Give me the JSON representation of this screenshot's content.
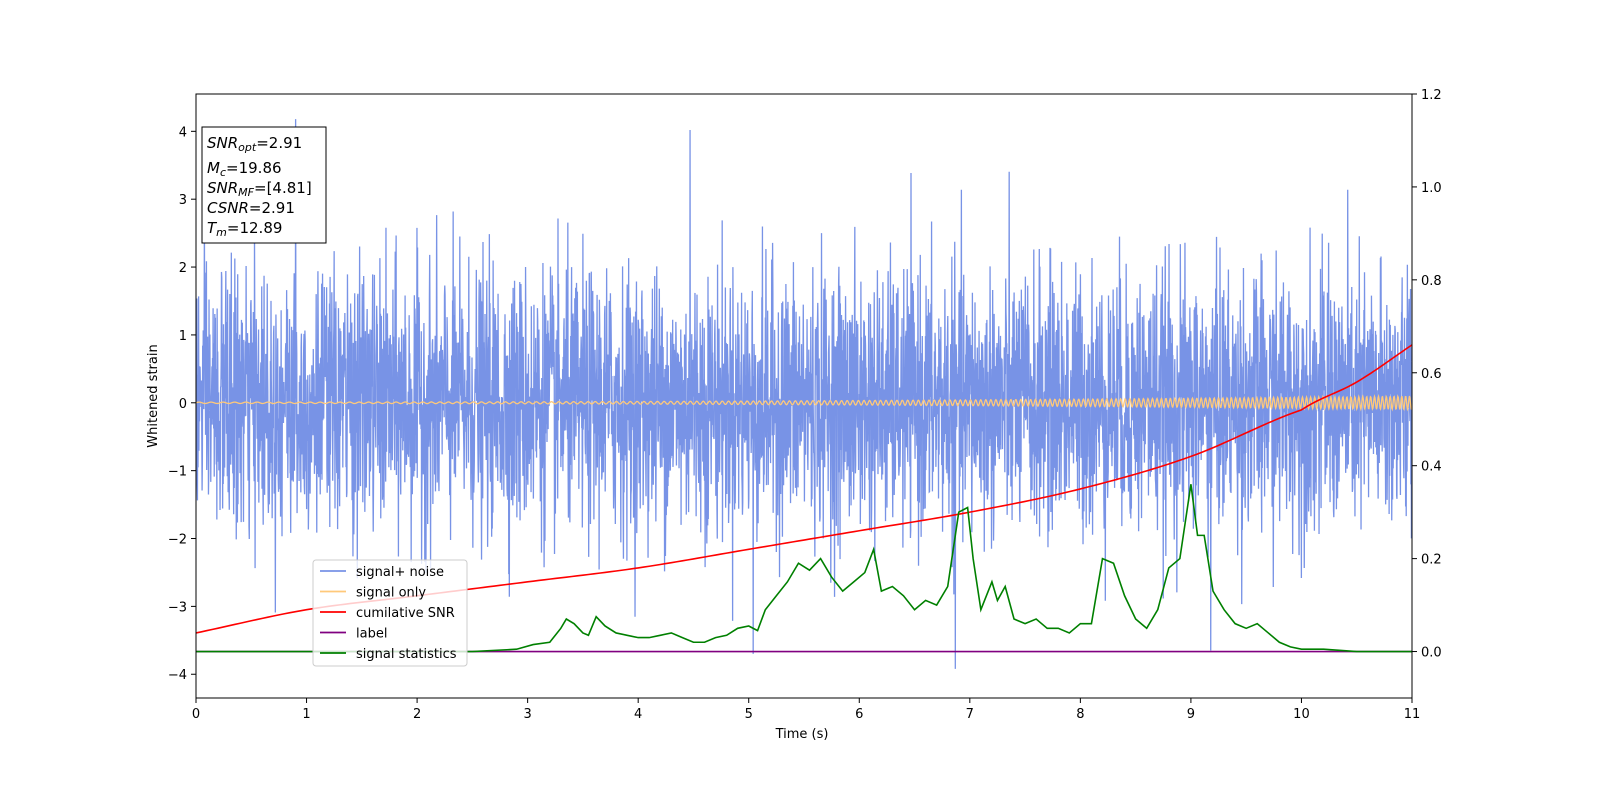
{
  "chart_data": {
    "type": "line",
    "xlabel": "Time (s)",
    "ylabel": "Whitened strain",
    "xlim": [
      0,
      11
    ],
    "ylim": [
      -4.35,
      4.55
    ],
    "y2lim": [
      -0.1,
      1.2
    ],
    "xticks": [
      "0",
      "1",
      "2",
      "3",
      "4",
      "5",
      "6",
      "7",
      "8",
      "9",
      "10",
      "11"
    ],
    "yticks": [
      "−4",
      "−3",
      "−2",
      "−1",
      "0",
      "1",
      "2",
      "3",
      "4"
    ],
    "y2ticks": [
      "0.0",
      "0.2",
      "0.4",
      "0.6",
      "0.8",
      "1.0",
      "1.2"
    ],
    "grid": false,
    "legend_position": "lower-left",
    "annotation": [
      {
        "base": "SNR",
        "sub": "opt",
        "value": "=2.91"
      },
      {
        "base": "M",
        "sub": "c",
        "value": "=19.86"
      },
      {
        "base": "SNR",
        "sub": "MF",
        "value": "=[4.81]"
      },
      {
        "base": "CSNR",
        "sub": "",
        "value": "=2.91"
      },
      {
        "base": "T",
        "sub": "m",
        "value": "=12.89"
      }
    ],
    "series": [
      {
        "name": "signal+ noise",
        "color": "#7893e6",
        "axis": "left",
        "noise_std": 0.95,
        "extremes": [
          [
            0.9,
            4.18
          ],
          [
            4.47,
            4.02
          ],
          [
            6.87,
            -3.92
          ],
          [
            9.18,
            -3.65
          ],
          [
            5.04,
            -3.7
          ]
        ]
      },
      {
        "name": "signal only",
        "color": "#ffc97a",
        "axis": "left",
        "amplitude_start": 0.01,
        "amplitude_end": 0.1
      },
      {
        "name": "cumilative SNR",
        "color": "#ff0000",
        "axis": "right",
        "x": [
          0,
          1,
          2,
          3,
          4,
          5,
          6,
          7,
          8,
          9,
          10,
          10.5,
          11
        ],
        "y": [
          0.04,
          0.09,
          0.12,
          0.15,
          0.18,
          0.22,
          0.26,
          0.3,
          0.35,
          0.42,
          0.52,
          0.58,
          0.66
        ]
      },
      {
        "name": "label",
        "color": "#800080",
        "axis": "right",
        "x": [
          0,
          11
        ],
        "y": [
          0.0,
          0.0
        ]
      },
      {
        "name": "signal statistics",
        "color": "#008000",
        "axis": "right",
        "x": [
          0,
          2.5,
          2.9,
          3.05,
          3.2,
          3.3,
          3.35,
          3.42,
          3.5,
          3.55,
          3.62,
          3.7,
          3.8,
          3.9,
          4.0,
          4.1,
          4.2,
          4.3,
          4.4,
          4.5,
          4.6,
          4.7,
          4.8,
          4.9,
          5.0,
          5.08,
          5.15,
          5.25,
          5.35,
          5.45,
          5.55,
          5.65,
          5.75,
          5.85,
          5.95,
          6.05,
          6.13,
          6.2,
          6.3,
          6.4,
          6.5,
          6.6,
          6.7,
          6.8,
          6.9,
          6.98,
          7.03,
          7.1,
          7.2,
          7.25,
          7.32,
          7.4,
          7.5,
          7.6,
          7.7,
          7.8,
          7.9,
          8.0,
          8.1,
          8.2,
          8.3,
          8.4,
          8.5,
          8.6,
          8.7,
          8.8,
          8.9,
          9.0,
          9.06,
          9.12,
          9.2,
          9.3,
          9.4,
          9.5,
          9.6,
          9.7,
          9.8,
          9.9,
          10.0,
          10.2,
          10.5,
          11.0
        ],
        "y": [
          0.0,
          0.0,
          0.005,
          0.015,
          0.02,
          0.05,
          0.07,
          0.06,
          0.04,
          0.035,
          0.075,
          0.055,
          0.04,
          0.035,
          0.03,
          0.03,
          0.035,
          0.04,
          0.03,
          0.02,
          0.02,
          0.03,
          0.035,
          0.05,
          0.055,
          0.045,
          0.09,
          0.12,
          0.15,
          0.19,
          0.175,
          0.2,
          0.16,
          0.13,
          0.15,
          0.17,
          0.22,
          0.13,
          0.14,
          0.12,
          0.09,
          0.11,
          0.1,
          0.14,
          0.3,
          0.31,
          0.2,
          0.09,
          0.15,
          0.11,
          0.14,
          0.07,
          0.06,
          0.07,
          0.05,
          0.05,
          0.04,
          0.06,
          0.06,
          0.2,
          0.19,
          0.12,
          0.07,
          0.05,
          0.09,
          0.18,
          0.2,
          0.36,
          0.25,
          0.25,
          0.13,
          0.09,
          0.06,
          0.05,
          0.06,
          0.04,
          0.02,
          0.01,
          0.005,
          0.005,
          0.0,
          0.0
        ]
      }
    ]
  }
}
